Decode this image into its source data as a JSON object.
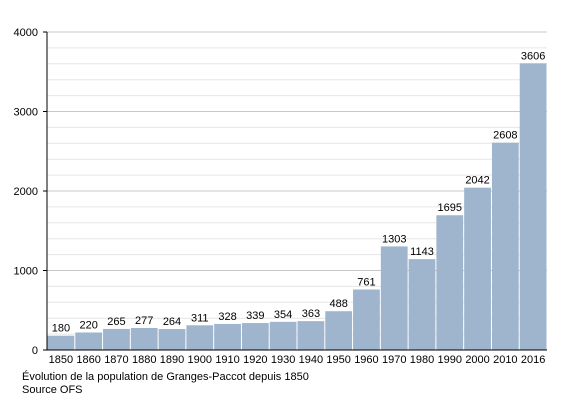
{
  "chart_data": {
    "type": "bar",
    "categories": [
      "1850",
      "1860",
      "1870",
      "1880",
      "1890",
      "1900",
      "1910",
      "1920",
      "1930",
      "1940",
      "1950",
      "1960",
      "1970",
      "1980",
      "1990",
      "2000",
      "2010",
      "2016"
    ],
    "values": [
      180,
      220,
      265,
      277,
      264,
      311,
      328,
      339,
      354,
      363,
      488,
      761,
      1303,
      1143,
      1695,
      2042,
      2608,
      3606
    ],
    "ylim": [
      0,
      4000
    ],
    "yticks": [
      0,
      1000,
      2000,
      3000,
      4000
    ],
    "grid": true,
    "bar_color": "#9fb5cd",
    "grid_color": "#cccccc",
    "xlabel": "",
    "ylabel": ""
  },
  "caption": {
    "line1": "Évolution de la population de Granges-Paccot depuis 1850",
    "line2": "Source OFS"
  }
}
